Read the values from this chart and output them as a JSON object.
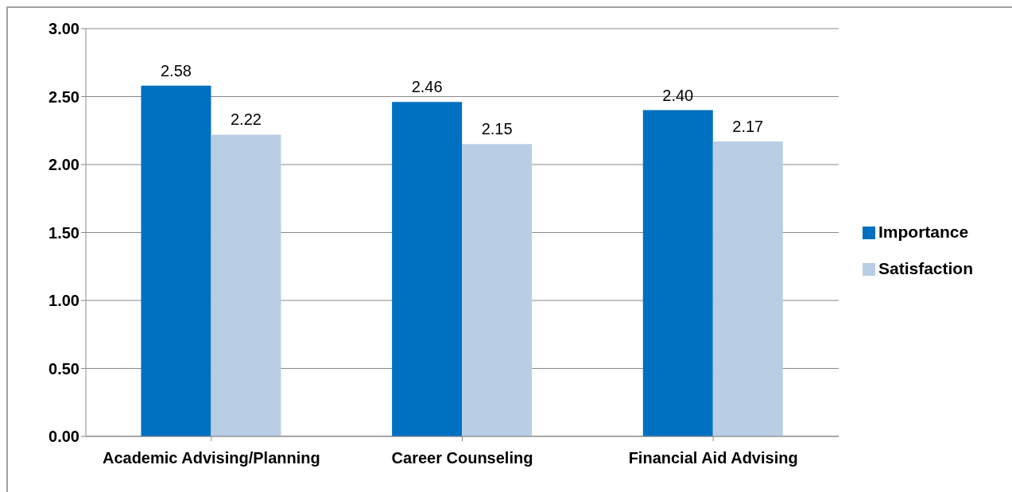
{
  "chart_data": {
    "type": "bar",
    "categories": [
      "Academic Advising/Planning",
      "Career Counseling",
      "Financial Aid Advising"
    ],
    "series": [
      {
        "name": "Importance",
        "color": "#0070c0",
        "values": [
          2.58,
          2.46,
          2.4
        ],
        "value_labels": [
          "2.58",
          "2.46",
          "2.40"
        ]
      },
      {
        "name": "Satisfaction",
        "color": "#b9cde5",
        "values": [
          2.22,
          2.15,
          2.17
        ],
        "value_labels": [
          "2.22",
          "2.15",
          "2.17"
        ]
      }
    ],
    "ylim": [
      0,
      3
    ],
    "yticks": [
      {
        "value": 0,
        "label": "0.00"
      },
      {
        "value": 0.5,
        "label": "0.50"
      },
      {
        "value": 1,
        "label": "1.00"
      },
      {
        "value": 1.5,
        "label": "1.50"
      },
      {
        "value": 2,
        "label": "2.00"
      },
      {
        "value": 2.5,
        "label": "2.50"
      },
      {
        "value": 3,
        "label": "3.00"
      }
    ],
    "grid": "y",
    "legend": "right"
  }
}
